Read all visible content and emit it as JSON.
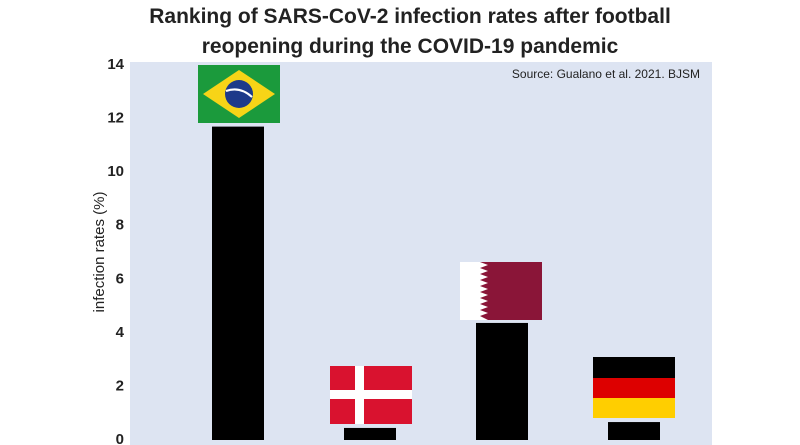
{
  "chart_data": {
    "type": "bar",
    "title": "Ranking of SARS-CoV-2 infection rates after football reopening during the COVID-19 pandemic",
    "annotation": "Source: Gualano et al. 2021. BJSM",
    "y_label": "infection rates (%)",
    "categories": [
      null,
      null,
      null,
      null
    ],
    "values": [
      11.7,
      0.45,
      4.37,
      0.67
    ],
    "color": "#000000",
    "ylim": [
      0,
      14
    ],
    "yticks": [
      0,
      2,
      4,
      6,
      8,
      10,
      12,
      14
    ],
    "grid": false
  }
}
